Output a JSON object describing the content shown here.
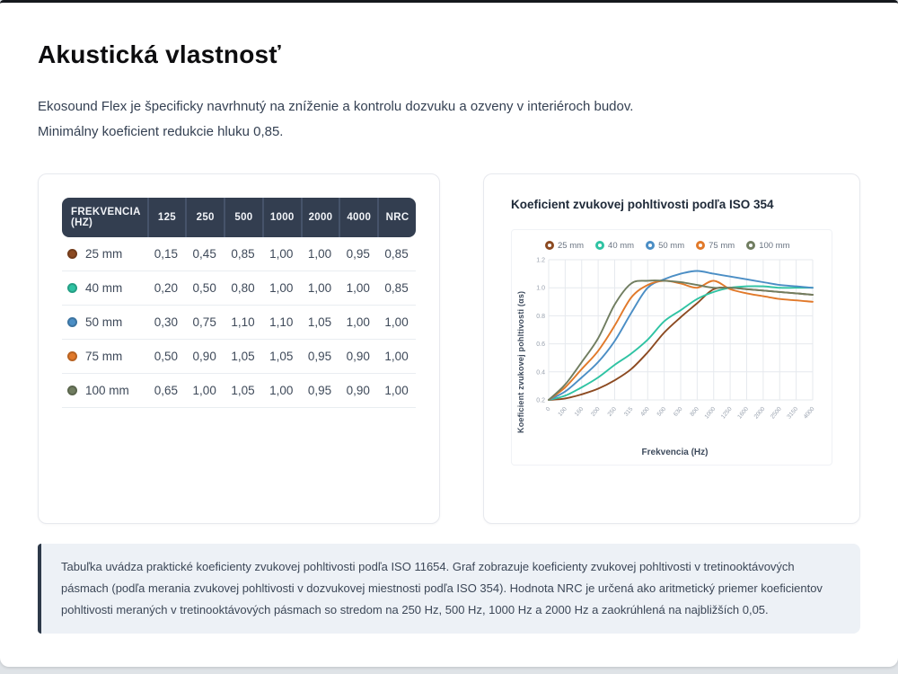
{
  "page": {
    "title": "Akustická vlastnosť",
    "intro": "Ekosound Flex je špecificky navrhnutý na zníženie a kontrolu dozvuku a ozveny v interiéroch budov. Minimálny koeficient redukcie hluku 0,85."
  },
  "table": {
    "header_col0": "FREKVENCIA (HZ)",
    "header_cols": [
      "125",
      "250",
      "500",
      "1000",
      "2000",
      "4000",
      "NRC"
    ],
    "rows": [
      {
        "label": "25 mm",
        "color": "#8c4a21",
        "values": [
          "0,15",
          "0,45",
          "0,85",
          "1,00",
          "1,00",
          "0,95",
          "0,85"
        ]
      },
      {
        "label": "40 mm",
        "color": "#2fc3a3",
        "values": [
          "0,20",
          "0,50",
          "0,80",
          "1,00",
          "1,00",
          "1,00",
          "0,85"
        ]
      },
      {
        "label": "50 mm",
        "color": "#4b8ec5",
        "values": [
          "0,30",
          "0,75",
          "1,10",
          "1,10",
          "1,05",
          "1,00",
          "1,00"
        ]
      },
      {
        "label": "75 mm",
        "color": "#e1792a",
        "values": [
          "0,50",
          "0,90",
          "1,05",
          "1,05",
          "0,95",
          "0,90",
          "1,00"
        ]
      },
      {
        "label": "100 mm",
        "color": "#707d60",
        "values": [
          "0,65",
          "1,00",
          "1,05",
          "1,00",
          "0,95",
          "0,90",
          "1,00"
        ]
      }
    ]
  },
  "chart_data": {
    "type": "line",
    "title": "Koeficient zvukovej pohltivosti podľa ISO 354",
    "xlabel": "Frekvencia (Hz)",
    "ylabel": "Koeficient zvukovej pohltivosti (αs)",
    "x": [
      "0",
      "100",
      "160",
      "200",
      "250",
      "315",
      "400",
      "500",
      "630",
      "800",
      "1000",
      "1250",
      "1600",
      "2000",
      "2500",
      "3150",
      "4000"
    ],
    "ylim": [
      0.2,
      1.2
    ],
    "yticks": [
      "0.2",
      "0.4",
      "0.6",
      "0.8",
      "1.0",
      "1.2"
    ],
    "grid": true,
    "legend_position": "top",
    "series": [
      {
        "name": "25 mm",
        "color": "#8c4a21",
        "values": [
          0.2,
          0.21,
          0.24,
          0.28,
          0.34,
          0.42,
          0.54,
          0.68,
          0.79,
          0.89,
          0.99,
          1.0,
          0.99,
          0.98,
          0.97,
          0.96,
          0.95
        ]
      },
      {
        "name": "40 mm",
        "color": "#2fc3a3",
        "values": [
          0.2,
          0.23,
          0.29,
          0.36,
          0.45,
          0.53,
          0.63,
          0.76,
          0.84,
          0.92,
          0.97,
          1.0,
          1.01,
          1.01,
          1.0,
          1.0,
          1.0
        ]
      },
      {
        "name": "50 mm",
        "color": "#4b8ec5",
        "values": [
          0.2,
          0.26,
          0.36,
          0.47,
          0.62,
          0.82,
          1.0,
          1.06,
          1.1,
          1.12,
          1.1,
          1.08,
          1.06,
          1.04,
          1.02,
          1.01,
          1.0
        ]
      },
      {
        "name": "75 mm",
        "color": "#e1792a",
        "values": [
          0.2,
          0.29,
          0.42,
          0.55,
          0.73,
          0.93,
          1.02,
          1.05,
          1.03,
          1.0,
          1.05,
          0.99,
          0.96,
          0.94,
          0.92,
          0.91,
          0.9
        ]
      },
      {
        "name": "100 mm",
        "color": "#707d60",
        "values": [
          0.2,
          0.31,
          0.47,
          0.64,
          0.88,
          1.03,
          1.05,
          1.05,
          1.04,
          1.02,
          1.0,
          1.0,
          0.99,
          0.98,
          0.97,
          0.96,
          0.95
        ]
      }
    ]
  },
  "note": {
    "text": "Tabuľka uvádza praktické koeficienty zvukovej pohltivosti podľa ISO 11654. Graf zobrazuje koeficienty zvukovej pohltivosti v tretinooktávových pásmach (podľa merania zvukovej pohltivosti v dozvukovej miestnosti podľa ISO 354). Hodnota NRC je určená ako aritmetický priemer koeficientov pohltivosti meraných v tretinooktávových pásmach so stredom na 250 Hz, 500 Hz, 1000 Hz a 2000 Hz a zaokrúhlená na najbližších 0,05."
  }
}
